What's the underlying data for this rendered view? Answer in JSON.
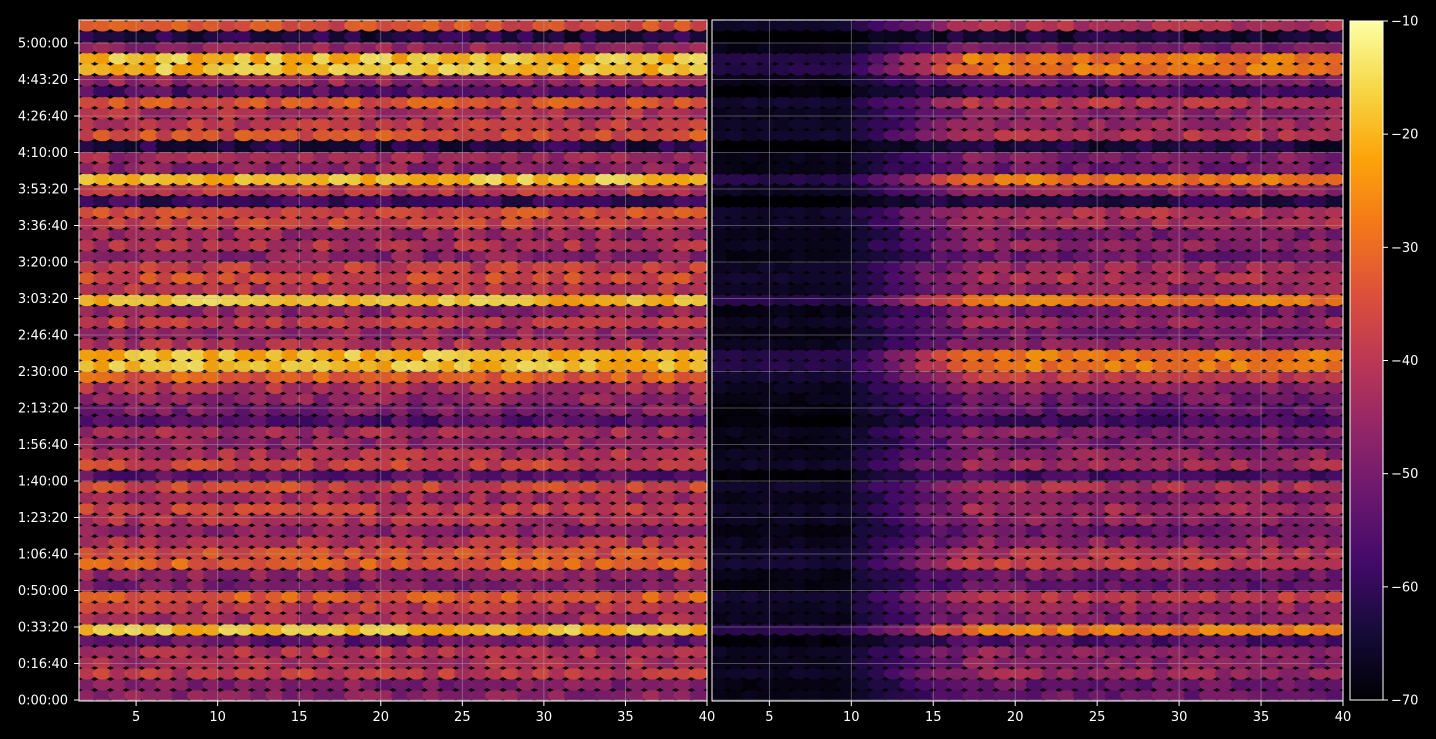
{
  "figure": {
    "background": "#000000",
    "foreground": "#ffffff"
  },
  "chart_data": {
    "type": "heatmap",
    "colormap": "inferno",
    "grid": true,
    "panels": [
      {
        "name": "",
        "x_range": [
          1.5,
          40
        ],
        "x_ticks": [
          "5",
          "10",
          "15",
          "20",
          "25",
          "30",
          "35",
          "40"
        ],
        "attenuation": 0
      },
      {
        "name": "",
        "x_range": [
          1.5,
          40
        ],
        "x_ticks": [
          "5",
          "10",
          "15",
          "20",
          "25",
          "30",
          "35",
          "40"
        ],
        "attenuation": 1
      }
    ],
    "y_axis": {
      "range_seconds": [
        0,
        18500
      ],
      "ticks": [
        {
          "label": "0:00:00",
          "seconds": 0
        },
        {
          "label": "0:16:40",
          "seconds": 1000
        },
        {
          "label": "0:33:20",
          "seconds": 2000
        },
        {
          "label": "0:50:00",
          "seconds": 3000
        },
        {
          "label": "1:06:40",
          "seconds": 4000
        },
        {
          "label": "1:23:20",
          "seconds": 5000
        },
        {
          "label": "1:40:00",
          "seconds": 6000
        },
        {
          "label": "1:56:40",
          "seconds": 7000
        },
        {
          "label": "2:13:20",
          "seconds": 8000
        },
        {
          "label": "2:30:00",
          "seconds": 9000
        },
        {
          "label": "2:46:40",
          "seconds": 10000
        },
        {
          "label": "3:03:20",
          "seconds": 11000
        },
        {
          "label": "3:20:00",
          "seconds": 12000
        },
        {
          "label": "3:36:40",
          "seconds": 13000
        },
        {
          "label": "3:53:20",
          "seconds": 14000
        },
        {
          "label": "4:10:00",
          "seconds": 15000
        },
        {
          "label": "4:26:40",
          "seconds": 16000
        },
        {
          "label": "4:43:20",
          "seconds": 17000
        },
        {
          "label": "5:00:00",
          "seconds": 18000
        }
      ]
    },
    "bright_bands_seconds": [
      17500,
      14300,
      10900,
      9250,
      1950
    ],
    "colorbar": {
      "range": [
        -70,
        -10
      ],
      "ticks": [
        "-10",
        "-20",
        "-30",
        "-40",
        "-50",
        "-60",
        "-70"
      ]
    }
  }
}
